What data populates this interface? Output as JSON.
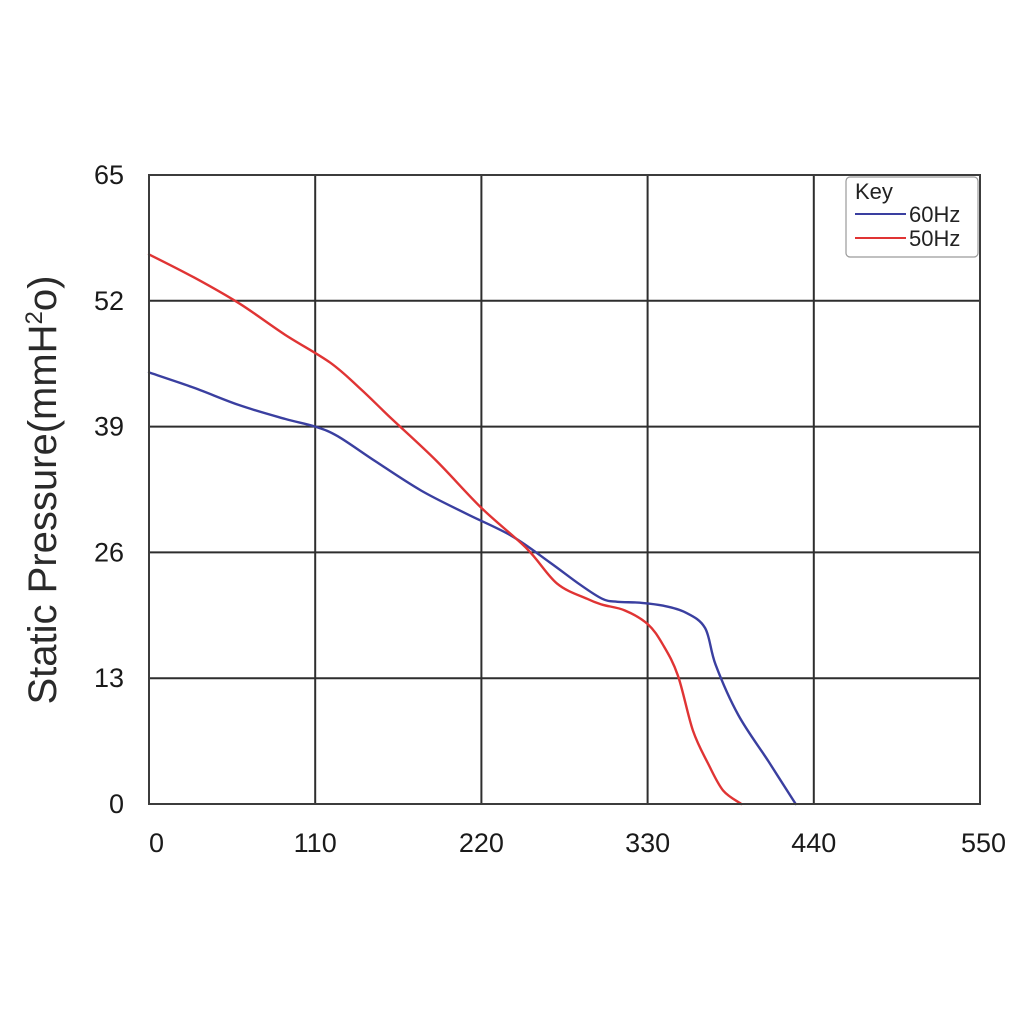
{
  "chart_data": {
    "type": "line",
    "title": "",
    "xlabel": "",
    "ylabel_main": "Static Pressure(mmH",
    "ylabel_sup": "2",
    "ylabel_end": "o)",
    "xlim": [
      0,
      550
    ],
    "ylim": [
      0,
      65
    ],
    "xticks": [
      0,
      110,
      220,
      330,
      440,
      550
    ],
    "xtick_labels": [
      "0",
      "110",
      "220",
      "330",
      "440",
      "550"
    ],
    "yticks": [
      0,
      13,
      26,
      39,
      52,
      65
    ],
    "ytick_labels": [
      "0",
      "13",
      "26",
      "39",
      "52",
      "65"
    ],
    "grid": true,
    "legend": {
      "title": "Key",
      "placement": "top-right"
    },
    "series": [
      {
        "name": "60Hz",
        "color": "#3a3fa0",
        "x": [
          0,
          30,
          60,
          90,
          110,
          125,
          150,
          180,
          210,
          240,
          265,
          285,
          300,
          310,
          325,
          340,
          355,
          368,
          375,
          390,
          410,
          428
        ],
        "y": [
          44.6,
          43,
          41.2,
          39.8,
          39,
          38,
          35.4,
          32.4,
          30,
          27.7,
          25,
          22.7,
          21.2,
          20.9,
          20.8,
          20.5,
          19.8,
          18.2,
          14.4,
          9.2,
          4.4,
          0
        ]
      },
      {
        "name": "50Hz",
        "color": "#e03434",
        "x": [
          0,
          30,
          60,
          90,
          120,
          140,
          160,
          190,
          220,
          250,
          270,
          290,
          300,
          315,
          330,
          340,
          350,
          360,
          370,
          380,
          392
        ],
        "y": [
          56.8,
          54.4,
          51.7,
          48.5,
          45.6,
          42.9,
          39.9,
          35.5,
          30.6,
          26.4,
          22.8,
          21.2,
          20.6,
          20.0,
          18.6,
          16.5,
          13.3,
          7.6,
          4.2,
          1.4,
          0
        ]
      }
    ]
  }
}
